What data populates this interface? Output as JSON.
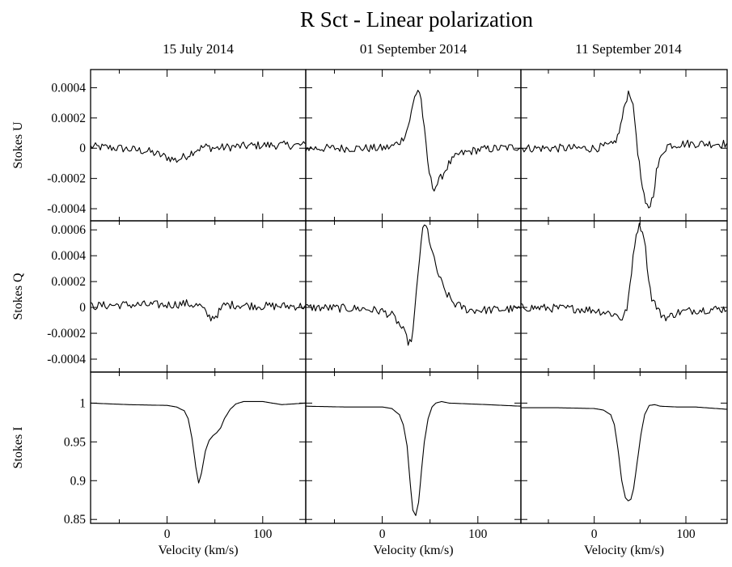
{
  "chart_data": {
    "type": "line",
    "title": "R Sct - Linear polarization",
    "columns": [
      "15 July 2014",
      "01 September 2014",
      "11 September 2014"
    ],
    "xlabel": "Velocity (km/s)",
    "xlim": [
      -80,
      145
    ],
    "xticks": [
      0,
      100
    ],
    "rows": [
      {
        "key": "U",
        "ylabel": "Stokes U",
        "ylim": [
          -0.00048,
          0.00052
        ],
        "yticks": [
          0.0004,
          0.0002,
          0,
          -0.0002,
          -0.0004
        ],
        "ytick_labels": [
          "0.0004",
          "0.0002",
          "0",
          "-0.0002",
          "-0.0004"
        ]
      },
      {
        "key": "Q",
        "ylabel": "Stokes Q",
        "ylim": [
          -0.0005,
          0.00067
        ],
        "yticks": [
          0.0006,
          0.0004,
          0.0002,
          0,
          -0.0002,
          -0.0004
        ],
        "ytick_labels": [
          "0.0006",
          "0.0004",
          "0.0002",
          "0",
          "-0.0002",
          "-0.0004"
        ]
      },
      {
        "key": "I",
        "ylabel": "Stokes I",
        "ylim": [
          0.845,
          1.04
        ],
        "yticks": [
          1,
          0.95,
          0.9,
          0.85
        ],
        "ytick_labels": [
          "1",
          "0.95",
          "0.9",
          "0.85"
        ]
      }
    ],
    "series": [
      {
        "row": "U",
        "col": 0,
        "x": [
          -80,
          -50,
          -20,
          0,
          10,
          20,
          30,
          40,
          50,
          70,
          100,
          145
        ],
        "y": [
          1e-05,
          0,
          -2e-05,
          -6e-05,
          -8e-05,
          -5e-05,
          -1e-05,
          1e-05,
          0,
          1e-05,
          2e-05,
          2e-05
        ]
      },
      {
        "row": "U",
        "col": 1,
        "x": [
          -80,
          0,
          10,
          20,
          26,
          30,
          34,
          37,
          40,
          44,
          48,
          52,
          55,
          60,
          70,
          80,
          100,
          145
        ],
        "y": [
          0,
          0,
          1e-05,
          5e-05,
          0.00012,
          0.00022,
          0.00034,
          0.00039,
          0.00036,
          0.00012,
          -0.00012,
          -0.00025,
          -0.00026,
          -0.00021,
          -0.0001,
          -4e-05,
          -1e-05,
          1e-05
        ]
      },
      {
        "row": "U",
        "col": 2,
        "x": [
          -80,
          0,
          20,
          26,
          30,
          34,
          37,
          40,
          44,
          48,
          52,
          56,
          60,
          64,
          68,
          75,
          80,
          100,
          145
        ],
        "y": [
          0,
          0,
          2e-05,
          8e-05,
          0.00018,
          0.0003,
          0.00037,
          0.00036,
          0.0002,
          -5e-05,
          -0.00025,
          -0.00038,
          -0.00039,
          -0.00032,
          -0.00015,
          -2e-05,
          2e-05,
          3e-05,
          3e-05
        ]
      },
      {
        "row": "Q",
        "col": 0,
        "x": [
          -80,
          -50,
          -20,
          0,
          20,
          35,
          40,
          45,
          50,
          55,
          60,
          70,
          100,
          145
        ],
        "y": [
          1e-05,
          2e-05,
          2e-05,
          2e-05,
          3e-05,
          1e-05,
          -4e-05,
          -8e-05,
          -7e-05,
          -3e-05,
          2e-05,
          2e-05,
          1e-05,
          1e-05
        ]
      },
      {
        "row": "Q",
        "col": 1,
        "x": [
          -80,
          -20,
          0,
          10,
          16,
          22,
          26,
          29,
          32,
          35,
          38,
          41,
          44,
          47,
          50,
          54,
          58,
          65,
          75,
          90,
          110,
          145
        ],
        "y": [
          0,
          -1e-05,
          -3e-05,
          -6e-05,
          -0.00011,
          -0.00018,
          -0.00025,
          -0.00028,
          -0.0002,
          5e-05,
          0.0003,
          0.00055,
          0.00063,
          0.00061,
          0.0005,
          0.00037,
          0.00027,
          0.00013,
          3e-05,
          -2e-05,
          -2e-05,
          -1e-05
        ]
      },
      {
        "row": "Q",
        "col": 2,
        "x": [
          -80,
          -20,
          0,
          15,
          25,
          30,
          35,
          40,
          43,
          47,
          50,
          54,
          57,
          60,
          63,
          67,
          72,
          80,
          90,
          110,
          145
        ],
        "y": [
          0,
          -1e-05,
          -2e-05,
          -4e-05,
          -6e-05,
          -9e-05,
          -3e-05,
          0.0002,
          0.00045,
          0.00061,
          0.00063,
          0.00058,
          0.00038,
          0.00018,
          7e-05,
          2e-05,
          -5e-05,
          -8e-05,
          -4e-05,
          -2e-05,
          -1e-05
        ]
      },
      {
        "row": "I",
        "col": 0,
        "x": [
          -80,
          -40,
          0,
          10,
          18,
          22,
          26,
          30,
          33,
          36,
          40,
          44,
          48,
          52,
          56,
          60,
          66,
          72,
          80,
          100,
          120,
          145
        ],
        "y": [
          1.0,
          0.998,
          0.997,
          0.995,
          0.99,
          0.98,
          0.955,
          0.918,
          0.897,
          0.91,
          0.938,
          0.952,
          0.958,
          0.962,
          0.968,
          0.98,
          0.992,
          0.999,
          1.002,
          1.002,
          0.998,
          1.0
        ]
      },
      {
        "row": "I",
        "col": 1,
        "x": [
          -80,
          -40,
          0,
          10,
          18,
          22,
          26,
          29,
          32,
          35,
          38,
          41,
          44,
          48,
          52,
          56,
          62,
          70,
          90,
          110,
          145
        ],
        "y": [
          0.996,
          0.995,
          0.995,
          0.993,
          0.985,
          0.972,
          0.945,
          0.9,
          0.862,
          0.855,
          0.872,
          0.912,
          0.95,
          0.98,
          0.995,
          1.0,
          1.002,
          1.0,
          0.999,
          0.998,
          0.996
        ]
      },
      {
        "row": "I",
        "col": 2,
        "x": [
          -80,
          -40,
          0,
          10,
          18,
          22,
          26,
          30,
          34,
          37,
          40,
          43,
          47,
          51,
          55,
          60,
          66,
          72,
          90,
          110,
          145
        ],
        "y": [
          0.994,
          0.994,
          0.993,
          0.991,
          0.985,
          0.972,
          0.94,
          0.9,
          0.878,
          0.874,
          0.876,
          0.89,
          0.925,
          0.96,
          0.985,
          0.997,
          0.998,
          0.996,
          0.995,
          0.995,
          0.992
        ]
      }
    ]
  }
}
